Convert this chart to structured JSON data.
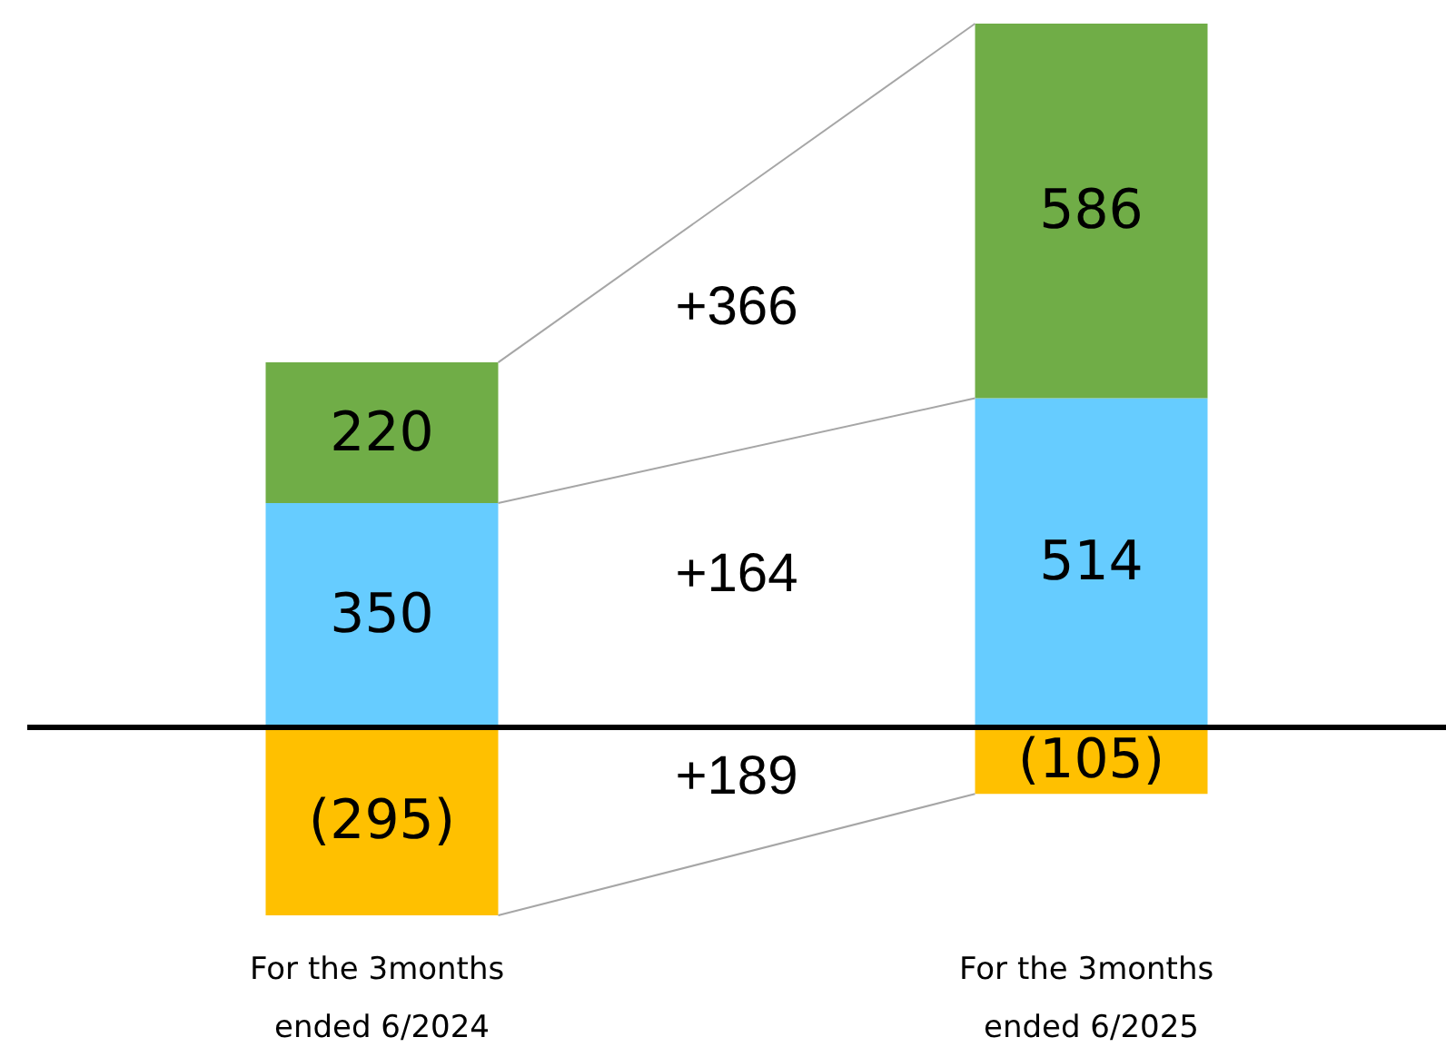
{
  "chart_data": {
    "type": "bar",
    "stacked": true,
    "categories": [
      "For the 3months ended 6/2024",
      "For the 3months ended 6/2025"
    ],
    "series": [
      {
        "color": "#ffc000",
        "values": [
          -295,
          -105
        ],
        "value_labels": [
          "(295)",
          "(105)"
        ]
      },
      {
        "color": "#66ccff",
        "values": [
          350,
          514
        ],
        "value_labels": [
          "350",
          "514"
        ]
      },
      {
        "color": "#70ad47",
        "values": [
          220,
          586
        ],
        "value_labels": [
          "220",
          "586"
        ]
      }
    ],
    "annotations": [
      "+189",
      "+164",
      "+366"
    ],
    "ref_lines": [
      {
        "axis": "y",
        "value": 0,
        "color": "#000000"
      }
    ]
  }
}
